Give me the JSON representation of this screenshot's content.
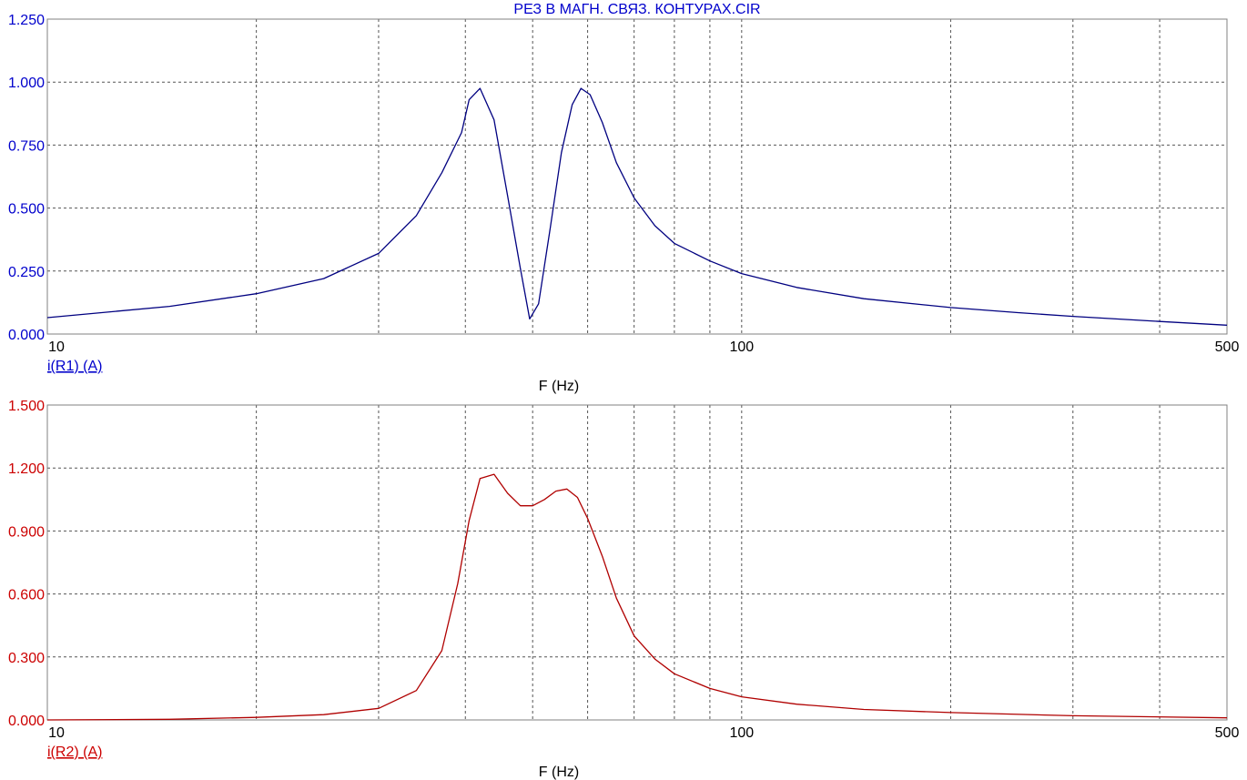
{
  "title": "РЕЗ В МАГН. СВЯЗ. КОНТУРАХ.CIR",
  "colors": {
    "series1": "#000080",
    "series2": "#b00000",
    "grid": "#555555",
    "frame": "#808080"
  },
  "chart_data": [
    {
      "type": "line",
      "xscale": "log",
      "xlim": [
        10,
        500
      ],
      "ylim": [
        0,
        1.25
      ],
      "xlabel": "F (Hz)",
      "ylabel": "i(R1) (A)",
      "x_tick_labels": [
        "10",
        "100",
        "500"
      ],
      "y_tick_labels": [
        "0.000",
        "0.250",
        "0.500",
        "0.750",
        "1.000",
        "1.250"
      ],
      "grid": true,
      "series": [
        {
          "name": "i(R1) (A)",
          "x": [
            10,
            15,
            20,
            25,
            30,
            34,
            37,
            39.5,
            40.5,
            42,
            44,
            46,
            48,
            49.5,
            51,
            53,
            55,
            57,
            58.7,
            60.5,
            63,
            66,
            70,
            75,
            80,
            90,
            100,
            120,
            150,
            200,
            250,
            300,
            400,
            500
          ],
          "y": [
            0.065,
            0.11,
            0.16,
            0.22,
            0.32,
            0.47,
            0.64,
            0.8,
            0.93,
            0.975,
            0.85,
            0.55,
            0.26,
            0.06,
            0.12,
            0.42,
            0.72,
            0.91,
            0.975,
            0.95,
            0.84,
            0.68,
            0.54,
            0.43,
            0.36,
            0.29,
            0.24,
            0.185,
            0.14,
            0.105,
            0.085,
            0.07,
            0.05,
            0.035
          ]
        }
      ]
    },
    {
      "type": "line",
      "xscale": "log",
      "xlim": [
        10,
        500
      ],
      "ylim": [
        0,
        1.5
      ],
      "xlabel": "F (Hz)",
      "ylabel": "i(R2) (A)",
      "x_tick_labels": [
        "10",
        "100",
        "500"
      ],
      "y_tick_labels": [
        "0.000",
        "0.300",
        "0.600",
        "0.900",
        "1.200",
        "1.500"
      ],
      "grid": true,
      "series": [
        {
          "name": "i(R2) (A)",
          "x": [
            10,
            15,
            20,
            25,
            30,
            34,
            37,
            39,
            40.5,
            42,
            44,
            46,
            48,
            50,
            52,
            54,
            56,
            58,
            60,
            63,
            66,
            70,
            75,
            80,
            90,
            100,
            120,
            150,
            200,
            300,
            500
          ],
          "y": [
            0.0,
            0.003,
            0.012,
            0.025,
            0.055,
            0.14,
            0.33,
            0.65,
            0.95,
            1.15,
            1.17,
            1.08,
            1.02,
            1.02,
            1.05,
            1.09,
            1.1,
            1.06,
            0.96,
            0.78,
            0.58,
            0.4,
            0.29,
            0.22,
            0.15,
            0.11,
            0.075,
            0.05,
            0.035,
            0.02,
            0.01
          ]
        }
      ]
    }
  ]
}
